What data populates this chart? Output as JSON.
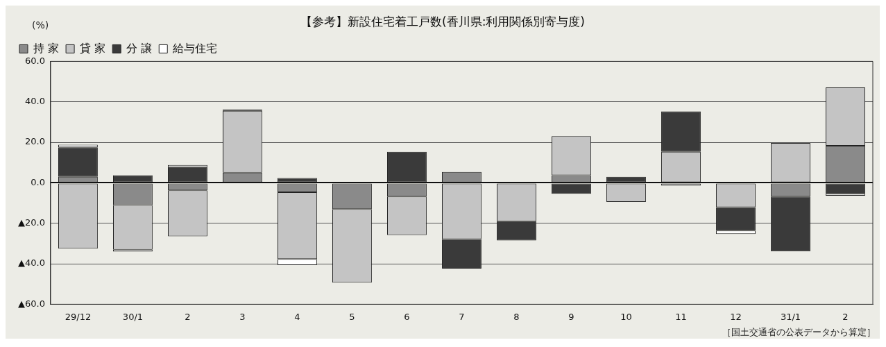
{
  "chart_data": {
    "type": "bar",
    "stacked": true,
    "title": "【参考】新設住宅着工戸数(香川県:利用関係別寄与度)",
    "ylabel": "(%)",
    "categories": [
      "29/12",
      "30/1",
      "2",
      "3",
      "4",
      "5",
      "6",
      "7",
      "8",
      "9",
      "10",
      "11",
      "12",
      "31/1",
      "2"
    ],
    "series": [
      {
        "name": "持 家",
        "color": "#8a8a8a",
        "values": [
          3,
          -11,
          -3.7,
          5,
          -4.7,
          -13,
          -6.8,
          5.4,
          0,
          3.7,
          0,
          -1.4,
          0,
          -6.8,
          18.3
        ]
      },
      {
        "name": "貸 家",
        "color": "#c4c4c4",
        "values": [
          -32.5,
          -22,
          -22.7,
          30.5,
          -33,
          -36.3,
          -19,
          -27.8,
          -19,
          19.3,
          -9.5,
          15.3,
          -12,
          19.7,
          28.8
        ]
      },
      {
        "name": "分 譲",
        "color": "#3a3a3a",
        "values": [
          14.5,
          3.7,
          7.8,
          0.7,
          2.4,
          0,
          15.3,
          -14.6,
          -9.5,
          -5.4,
          3,
          20,
          -11.6,
          -27.1,
          -5.4
        ]
      },
      {
        "name": "給与住宅",
        "color": "#ffffff",
        "values": [
          1.3,
          -1,
          1,
          0,
          -3,
          0,
          0,
          0,
          0,
          0,
          0,
          0,
          -1.7,
          0,
          -1
        ]
      }
    ],
    "ylim": [
      -60,
      60
    ],
    "yticks": [
      {
        "value": -60,
        "label": "▲60.0"
      },
      {
        "value": -40,
        "label": "▲40.0"
      },
      {
        "value": -20,
        "label": "▲20.0"
      },
      {
        "value": 0,
        "label": "0.0"
      },
      {
        "value": 20,
        "label": "20.0"
      },
      {
        "value": 40,
        "label": "40.0"
      },
      {
        "value": 60,
        "label": "60.0"
      }
    ],
    "grid": "y",
    "legend": "top left",
    "annotations": [
      "［国土交通省の公表データから算定］"
    ]
  }
}
